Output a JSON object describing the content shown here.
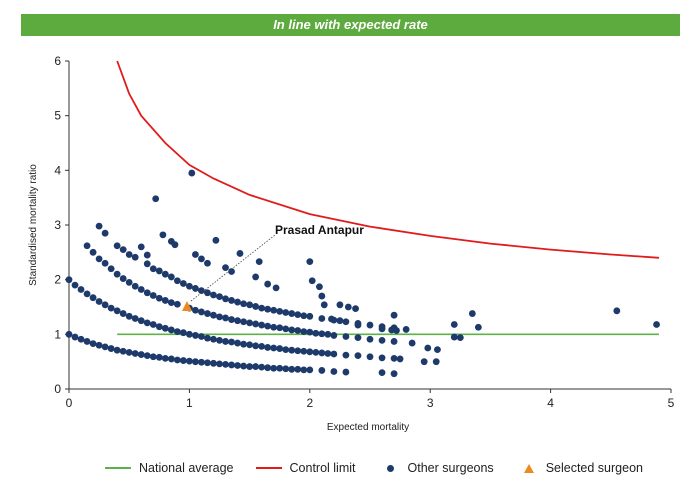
{
  "banner": {
    "text": "In line with expected rate",
    "color": "#5daa3e"
  },
  "chart_data": {
    "type": "scatter",
    "title": "",
    "xlabel": "Expected mortality",
    "ylabel": "Standardised mortality ratio",
    "xlim": [
      0,
      5
    ],
    "ylim": [
      0,
      6
    ],
    "xticks": [
      "0",
      "1",
      "2",
      "3",
      "4",
      "5"
    ],
    "yticks": [
      "0",
      "1",
      "2",
      "3",
      "4",
      "5",
      "6"
    ],
    "grid": false,
    "legend_placement": "bottom",
    "national_average": {
      "name": "National average",
      "y": 1,
      "x_range": [
        0.4,
        4.9
      ],
      "color": "#5fb24a"
    },
    "control_limit": {
      "name": "Control limit",
      "color": "#e01b1b",
      "points": [
        [
          0.4,
          6.0
        ],
        [
          0.5,
          5.4
        ],
        [
          0.6,
          5.0
        ],
        [
          0.8,
          4.5
        ],
        [
          1.0,
          4.1
        ],
        [
          1.2,
          3.85
        ],
        [
          1.5,
          3.55
        ],
        [
          2.0,
          3.2
        ],
        [
          2.5,
          2.97
        ],
        [
          3.0,
          2.8
        ],
        [
          3.5,
          2.66
        ],
        [
          4.0,
          2.55
        ],
        [
          4.5,
          2.46
        ],
        [
          4.9,
          2.4
        ]
      ]
    },
    "other_surgeons": {
      "name": "Other surgeons",
      "color": "#1d3a6b",
      "points": [
        [
          0.0,
          1.0
        ],
        [
          0.05,
          0.95
        ],
        [
          0.1,
          0.91
        ],
        [
          0.15,
          0.87
        ],
        [
          0.2,
          0.83
        ],
        [
          0.25,
          0.8
        ],
        [
          0.3,
          0.77
        ],
        [
          0.35,
          0.74
        ],
        [
          0.4,
          0.71
        ],
        [
          0.45,
          0.69
        ],
        [
          0.5,
          0.67
        ],
        [
          0.55,
          0.65
        ],
        [
          0.6,
          0.63
        ],
        [
          0.65,
          0.61
        ],
        [
          0.7,
          0.59
        ],
        [
          0.75,
          0.58
        ],
        [
          0.8,
          0.56
        ],
        [
          0.85,
          0.55
        ],
        [
          0.9,
          0.53
        ],
        [
          0.95,
          0.52
        ],
        [
          1.0,
          0.51
        ],
        [
          1.05,
          0.5
        ],
        [
          1.1,
          0.49
        ],
        [
          1.15,
          0.48
        ],
        [
          1.2,
          0.47
        ],
        [
          1.25,
          0.46
        ],
        [
          1.3,
          0.45
        ],
        [
          1.35,
          0.44
        ],
        [
          1.4,
          0.43
        ],
        [
          1.45,
          0.42
        ],
        [
          1.5,
          0.41
        ],
        [
          1.55,
          0.41
        ],
        [
          1.6,
          0.4
        ],
        [
          1.65,
          0.39
        ],
        [
          1.7,
          0.38
        ],
        [
          1.75,
          0.38
        ],
        [
          1.8,
          0.37
        ],
        [
          1.85,
          0.36
        ],
        [
          1.9,
          0.36
        ],
        [
          1.95,
          0.35
        ],
        [
          2.0,
          0.35
        ],
        [
          2.1,
          0.34
        ],
        [
          2.2,
          0.32
        ],
        [
          2.3,
          0.31
        ],
        [
          2.6,
          0.3
        ],
        [
          2.7,
          0.28
        ],
        [
          0.0,
          2.0
        ],
        [
          0.05,
          1.9
        ],
        [
          0.1,
          1.82
        ],
        [
          0.15,
          1.74
        ],
        [
          0.2,
          1.67
        ],
        [
          0.25,
          1.6
        ],
        [
          0.3,
          1.54
        ],
        [
          0.35,
          1.48
        ],
        [
          0.4,
          1.43
        ],
        [
          0.45,
          1.38
        ],
        [
          0.5,
          1.33
        ],
        [
          0.55,
          1.29
        ],
        [
          0.6,
          1.25
        ],
        [
          0.65,
          1.21
        ],
        [
          0.7,
          1.18
        ],
        [
          0.75,
          1.14
        ],
        [
          0.8,
          1.11
        ],
        [
          0.85,
          1.08
        ],
        [
          0.9,
          1.05
        ],
        [
          0.95,
          1.03
        ],
        [
          1.0,
          1.0
        ],
        [
          1.05,
          0.98
        ],
        [
          1.1,
          0.96
        ],
        [
          1.15,
          0.93
        ],
        [
          1.2,
          0.91
        ],
        [
          1.25,
          0.89
        ],
        [
          1.3,
          0.87
        ],
        [
          1.35,
          0.86
        ],
        [
          1.4,
          0.84
        ],
        [
          1.45,
          0.82
        ],
        [
          1.5,
          0.81
        ],
        [
          1.55,
          0.79
        ],
        [
          1.6,
          0.78
        ],
        [
          1.65,
          0.76
        ],
        [
          1.7,
          0.75
        ],
        [
          1.75,
          0.74
        ],
        [
          1.8,
          0.72
        ],
        [
          1.85,
          0.71
        ],
        [
          1.9,
          0.7
        ],
        [
          1.95,
          0.69
        ],
        [
          2.0,
          0.68
        ],
        [
          2.05,
          0.67
        ],
        [
          2.1,
          0.66
        ],
        [
          2.15,
          0.65
        ],
        [
          2.2,
          0.64
        ],
        [
          2.3,
          0.62
        ],
        [
          2.4,
          0.61
        ],
        [
          2.5,
          0.59
        ],
        [
          2.6,
          0.57
        ],
        [
          2.7,
          0.56
        ],
        [
          2.75,
          0.55
        ],
        [
          2.95,
          0.5
        ],
        [
          3.05,
          0.5
        ],
        [
          0.2,
          2.5
        ],
        [
          0.25,
          2.38
        ],
        [
          0.3,
          2.3
        ],
        [
          0.35,
          2.2
        ],
        [
          0.4,
          2.1
        ],
        [
          0.45,
          2.02
        ],
        [
          0.5,
          1.95
        ],
        [
          0.55,
          1.88
        ],
        [
          0.6,
          1.82
        ],
        [
          0.65,
          1.76
        ],
        [
          0.7,
          1.71
        ],
        [
          0.75,
          1.66
        ],
        [
          0.8,
          1.62
        ],
        [
          0.85,
          1.58
        ],
        [
          0.9,
          1.55
        ],
        [
          1.0,
          1.48
        ],
        [
          1.05,
          1.44
        ],
        [
          1.1,
          1.41
        ],
        [
          1.15,
          1.38
        ],
        [
          1.2,
          1.35
        ],
        [
          1.25,
          1.32
        ],
        [
          1.3,
          1.3
        ],
        [
          1.35,
          1.27
        ],
        [
          1.4,
          1.25
        ],
        [
          1.45,
          1.23
        ],
        [
          1.5,
          1.21
        ],
        [
          1.55,
          1.19
        ],
        [
          1.6,
          1.17
        ],
        [
          1.65,
          1.15
        ],
        [
          1.7,
          1.13
        ],
        [
          1.75,
          1.12
        ],
        [
          1.8,
          1.1
        ],
        [
          1.85,
          1.08
        ],
        [
          1.9,
          1.07
        ],
        [
          1.95,
          1.05
        ],
        [
          2.0,
          1.04
        ],
        [
          2.05,
          1.02
        ],
        [
          2.1,
          1.01
        ],
        [
          2.15,
          1.0
        ],
        [
          2.2,
          0.98
        ],
        [
          2.3,
          0.96
        ],
        [
          2.4,
          0.94
        ],
        [
          2.5,
          0.91
        ],
        [
          2.6,
          0.89
        ],
        [
          2.7,
          0.87
        ],
        [
          2.85,
          0.84
        ],
        [
          0.4,
          2.62
        ],
        [
          0.45,
          2.55
        ],
        [
          0.5,
          2.46
        ],
        [
          0.55,
          2.41
        ],
        [
          0.65,
          2.29
        ],
        [
          0.7,
          2.2
        ],
        [
          0.75,
          2.16
        ],
        [
          0.8,
          2.1
        ],
        [
          0.85,
          2.05
        ],
        [
          0.9,
          1.98
        ],
        [
          0.95,
          1.93
        ],
        [
          1.0,
          1.88
        ],
        [
          1.05,
          1.84
        ],
        [
          1.1,
          1.8
        ],
        [
          1.15,
          1.76
        ],
        [
          1.2,
          1.72
        ],
        [
          1.25,
          1.69
        ],
        [
          1.3,
          1.65
        ],
        [
          1.35,
          1.62
        ],
        [
          1.4,
          1.59
        ],
        [
          1.45,
          1.56
        ],
        [
          1.5,
          1.54
        ],
        [
          1.55,
          1.51
        ],
        [
          1.6,
          1.48
        ],
        [
          1.65,
          1.46
        ],
        [
          1.7,
          1.44
        ],
        [
          1.75,
          1.42
        ],
        [
          1.8,
          1.4
        ],
        [
          1.85,
          1.38
        ],
        [
          1.9,
          1.36
        ],
        [
          1.95,
          1.34
        ],
        [
          2.0,
          1.33
        ],
        [
          2.1,
          1.29
        ],
        [
          2.2,
          1.26
        ],
        [
          2.3,
          1.23
        ],
        [
          2.4,
          1.2
        ],
        [
          2.5,
          1.17
        ],
        [
          2.6,
          1.14
        ],
        [
          2.7,
          1.12
        ],
        [
          2.8,
          1.09
        ],
        [
          0.15,
          2.62
        ],
        [
          0.25,
          2.98
        ],
        [
          0.3,
          2.85
        ],
        [
          0.6,
          2.6
        ],
        [
          0.65,
          2.45
        ],
        [
          0.72,
          3.48
        ],
        [
          0.78,
          2.82
        ],
        [
          0.85,
          2.7
        ],
        [
          0.88,
          2.64
        ],
        [
          1.02,
          3.95
        ],
        [
          1.05,
          2.46
        ],
        [
          1.1,
          2.38
        ],
        [
          1.15,
          2.3
        ],
        [
          1.22,
          2.72
        ],
        [
          1.3,
          2.22
        ],
        [
          1.35,
          2.15
        ],
        [
          1.42,
          2.48
        ],
        [
          1.55,
          2.05
        ],
        [
          1.58,
          2.33
        ],
        [
          1.65,
          1.92
        ],
        [
          1.72,
          1.85
        ],
        [
          2.0,
          2.33
        ],
        [
          2.02,
          1.98
        ],
        [
          2.08,
          1.87
        ],
        [
          2.1,
          1.7
        ],
        [
          2.12,
          1.54
        ],
        [
          2.18,
          1.28
        ],
        [
          2.25,
          1.25
        ],
        [
          2.25,
          1.54
        ],
        [
          2.32,
          1.5
        ],
        [
          2.38,
          1.47
        ],
        [
          2.4,
          1.17
        ],
        [
          2.6,
          1.1
        ],
        [
          2.68,
          1.08
        ],
        [
          2.7,
          1.35
        ],
        [
          2.72,
          1.07
        ],
        [
          3.2,
          1.18
        ],
        [
          3.2,
          0.95
        ],
        [
          3.25,
          0.94
        ],
        [
          3.35,
          1.38
        ],
        [
          3.4,
          1.13
        ],
        [
          4.55,
          1.43
        ],
        [
          4.88,
          1.18
        ],
        [
          2.98,
          0.75
        ],
        [
          3.06,
          0.72
        ]
      ]
    },
    "selected_surgeon": {
      "name": "Selected surgeon",
      "label": "Prasad Antapur",
      "x": 0.98,
      "y": 1.5,
      "color": "#ee8a1c"
    }
  }
}
